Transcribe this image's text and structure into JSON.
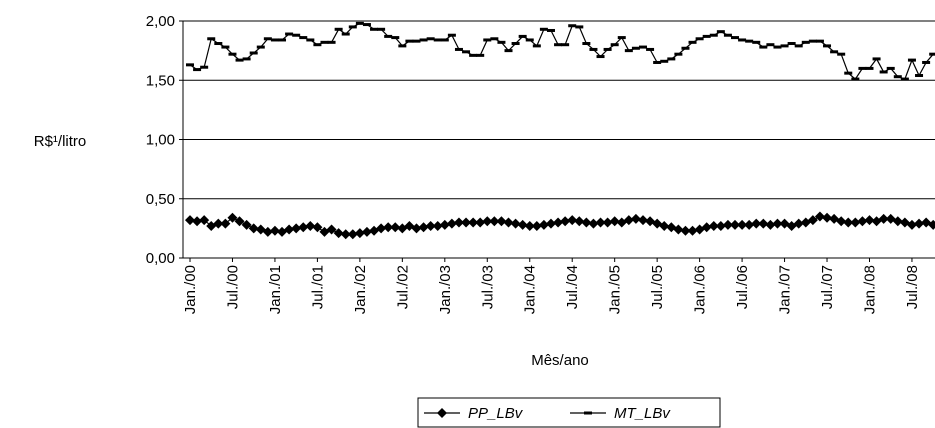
{
  "chart_data": {
    "type": "line",
    "y_label": "R$¹/litro",
    "x_label": "Mês/ano",
    "categories": [
      "Jan./00",
      null,
      null,
      null,
      null,
      null,
      "Jul./00",
      null,
      null,
      null,
      null,
      null,
      "Jan./01",
      null,
      null,
      null,
      null,
      null,
      "Jul./01",
      null,
      null,
      null,
      null,
      null,
      "Jan./02",
      null,
      null,
      null,
      null,
      null,
      "Jul./02",
      null,
      null,
      null,
      null,
      null,
      "Jan./03",
      null,
      null,
      null,
      null,
      null,
      "Jul./03",
      null,
      null,
      null,
      null,
      null,
      "Jan./04",
      null,
      null,
      null,
      null,
      null,
      "Jul./04",
      null,
      null,
      null,
      null,
      null,
      "Jan./05",
      null,
      null,
      null,
      null,
      null,
      "Jul./05",
      null,
      null,
      null,
      null,
      null,
      "Jan./06",
      null,
      null,
      null,
      null,
      null,
      "Jul./06",
      null,
      null,
      null,
      null,
      null,
      "Jan./07",
      null,
      null,
      null,
      null,
      null,
      "Jul./07",
      null,
      null,
      null,
      null,
      null,
      "Jan./08",
      null,
      null,
      null,
      null,
      null,
      "Jul./08",
      null,
      null,
      null
    ],
    "series": [
      {
        "name": "PP_LBv",
        "color": "#000000",
        "marker": "diamond",
        "values": [
          0.32,
          0.31,
          0.32,
          0.27,
          0.29,
          0.29,
          0.34,
          0.31,
          0.28,
          0.25,
          0.24,
          0.22,
          0.23,
          0.22,
          0.24,
          0.25,
          0.26,
          0.27,
          0.26,
          0.22,
          0.24,
          0.21,
          0.2,
          0.2,
          0.21,
          0.22,
          0.23,
          0.25,
          0.26,
          0.26,
          0.25,
          0.27,
          0.25,
          0.26,
          0.27,
          0.27,
          0.28,
          0.29,
          0.3,
          0.3,
          0.3,
          0.3,
          0.31,
          0.31,
          0.31,
          0.3,
          0.29,
          0.28,
          0.27,
          0.27,
          0.28,
          0.29,
          0.3,
          0.31,
          0.32,
          0.31,
          0.3,
          0.29,
          0.3,
          0.3,
          0.31,
          0.3,
          0.32,
          0.33,
          0.32,
          0.31,
          0.29,
          0.27,
          0.26,
          0.24,
          0.23,
          0.23,
          0.24,
          0.26,
          0.27,
          0.27,
          0.28,
          0.28,
          0.28,
          0.28,
          0.29,
          0.29,
          0.28,
          0.29,
          0.29,
          0.27,
          0.29,
          0.3,
          0.32,
          0.35,
          0.34,
          0.33,
          0.31,
          0.3,
          0.3,
          0.31,
          0.32,
          0.31,
          0.33,
          0.33,
          0.31,
          0.3,
          0.28,
          0.29,
          0.3,
          0.28
        ]
      },
      {
        "name": "MT_LBv",
        "color": "#000000",
        "marker": "dash",
        "values": [
          1.63,
          1.59,
          1.61,
          1.85,
          1.81,
          1.78,
          1.72,
          1.67,
          1.68,
          1.73,
          1.78,
          1.85,
          1.84,
          1.84,
          1.89,
          1.88,
          1.86,
          1.84,
          1.8,
          1.82,
          1.82,
          1.93,
          1.89,
          1.95,
          1.98,
          1.97,
          1.93,
          1.93,
          1.87,
          1.86,
          1.79,
          1.83,
          1.83,
          1.84,
          1.85,
          1.84,
          1.84,
          1.88,
          1.76,
          1.74,
          1.71,
          1.71,
          1.84,
          1.85,
          1.82,
          1.75,
          1.81,
          1.87,
          1.84,
          1.79,
          1.93,
          1.92,
          1.8,
          1.8,
          1.96,
          1.95,
          1.81,
          1.76,
          1.7,
          1.76,
          1.8,
          1.86,
          1.75,
          1.77,
          1.78,
          1.76,
          1.65,
          1.66,
          1.68,
          1.72,
          1.77,
          1.82,
          1.85,
          1.87,
          1.88,
          1.91,
          1.88,
          1.86,
          1.84,
          1.83,
          1.82,
          1.78,
          1.8,
          1.78,
          1.79,
          1.81,
          1.79,
          1.82,
          1.83,
          1.83,
          1.79,
          1.74,
          1.72,
          1.56,
          1.51,
          1.6,
          1.6,
          1.68,
          1.57,
          1.6,
          1.53,
          1.51,
          1.67,
          1.54,
          1.65,
          1.72
        ]
      }
    ],
    "ylim": [
      0,
      2
    ],
    "yticks": [
      {
        "value": 0,
        "label": "0,00"
      },
      {
        "value": 0.5,
        "label": "0,50"
      },
      {
        "value": 1,
        "label": "1,00"
      },
      {
        "value": 1.5,
        "label": "1,50"
      },
      {
        "value": 2,
        "label": "2,00"
      }
    ],
    "grid": true,
    "legend": "bottom"
  }
}
